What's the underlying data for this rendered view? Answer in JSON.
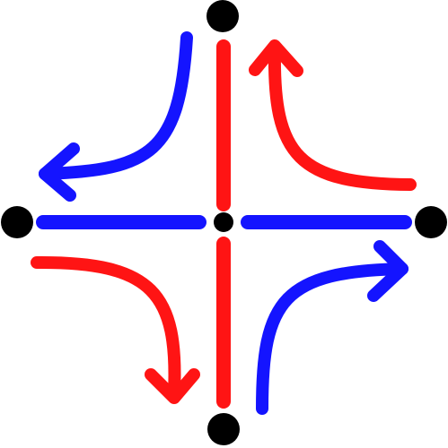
{
  "diagram": {
    "description_visible_text": "",
    "colors": {
      "red": "#ff1414",
      "blue": "#1414ff",
      "black": "#000000",
      "background": "#ffffff"
    },
    "nodes": [
      {
        "id": "top",
        "color": "black"
      },
      {
        "id": "left",
        "color": "black"
      },
      {
        "id": "center",
        "color": "black"
      },
      {
        "id": "right",
        "color": "black"
      },
      {
        "id": "bottom",
        "color": "black"
      }
    ],
    "lines": [
      {
        "id": "vertical-axis-top",
        "color": "red"
      },
      {
        "id": "vertical-axis-bottom",
        "color": "red"
      },
      {
        "id": "horizontal-axis-left",
        "color": "blue"
      },
      {
        "id": "horizontal-axis-right",
        "color": "blue"
      }
    ],
    "arrows": [
      {
        "id": "blue-top-left-arrow",
        "color": "blue",
        "direction": "left"
      },
      {
        "id": "red-top-right-arrow",
        "color": "red",
        "direction": "up"
      },
      {
        "id": "red-bottom-left-arrow",
        "color": "red",
        "direction": "down"
      },
      {
        "id": "blue-bottom-right-arrow",
        "color": "blue",
        "direction": "right"
      }
    ]
  }
}
